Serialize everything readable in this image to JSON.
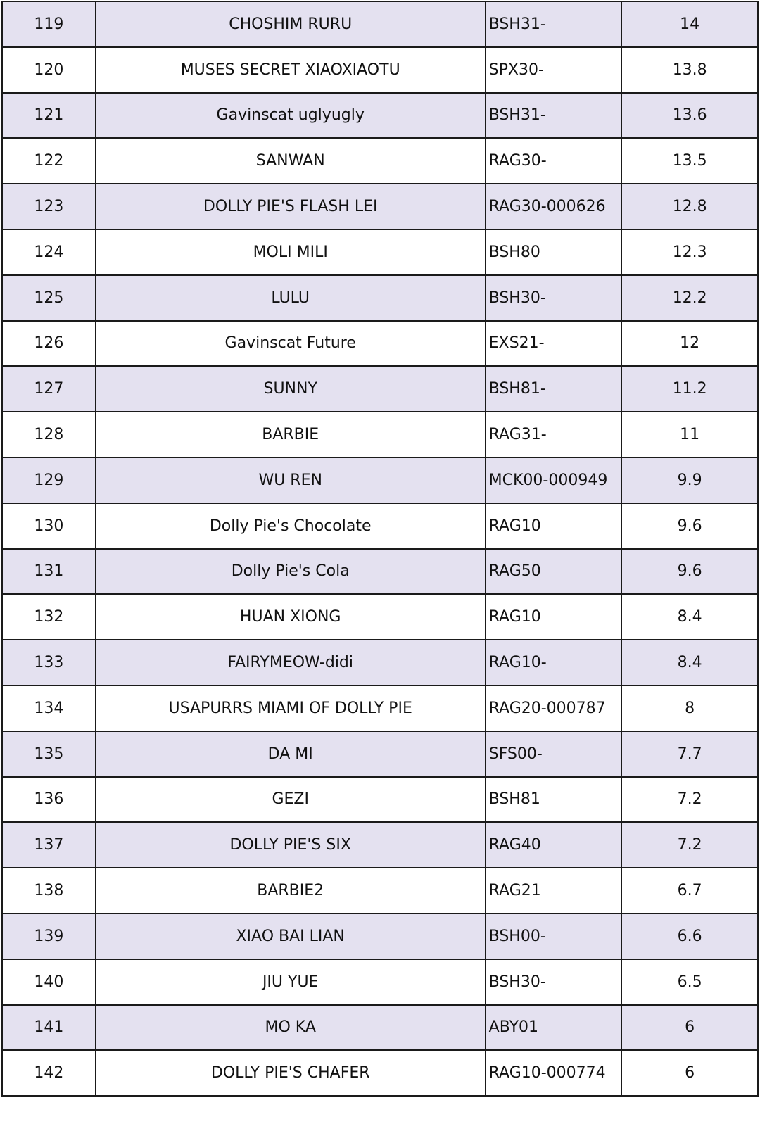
{
  "rows": [
    {
      "rank": "119",
      "name": "CHOSHIM RURU",
      "code": "BSH31-",
      "value": "14"
    },
    {
      "rank": "120",
      "name": "MUSES SECRET XIAOXIAOTU",
      "code": "SPX30-",
      "value": "13.8"
    },
    {
      "rank": "121",
      "name": "Gavinscat uglyugly",
      "code": "BSH31-",
      "value": "13.6"
    },
    {
      "rank": "122",
      "name": "SANWAN",
      "code": "RAG30-",
      "value": "13.5"
    },
    {
      "rank": "123",
      "name": "DOLLY PIE'S FLASH LEI",
      "code": "RAG30-000626",
      "value": "12.8"
    },
    {
      "rank": "124",
      "name": "MOLI MILI",
      "code": "BSH80",
      "value": "12.3"
    },
    {
      "rank": "125",
      "name": "LULU",
      "code": "BSH30-",
      "value": "12.2"
    },
    {
      "rank": "126",
      "name": "Gavinscat Future",
      "code": "EXS21-",
      "value": "12"
    },
    {
      "rank": "127",
      "name": "SUNNY",
      "code": "BSH81-",
      "value": "11.2"
    },
    {
      "rank": "128",
      "name": "BARBIE",
      "code": "RAG31-",
      "value": "11"
    },
    {
      "rank": "129",
      "name": "WU REN",
      "code": "MCK00-000949",
      "value": "9.9"
    },
    {
      "rank": "130",
      "name": "Dolly Pie's Chocolate",
      "code": "RAG10",
      "value": "9.6"
    },
    {
      "rank": "131",
      "name": "Dolly Pie's Cola",
      "code": "RAG50",
      "value": "9.6"
    },
    {
      "rank": "132",
      "name": "HUAN XIONG",
      "code": "RAG10",
      "value": "8.4"
    },
    {
      "rank": "133",
      "name": "FAIRYMEOW-didi",
      "code": "RAG10-",
      "value": "8.4"
    },
    {
      "rank": "134",
      "name": "USAPURRS MIAMI OF DOLLY PIE",
      "code": "RAG20-000787",
      "value": "8"
    },
    {
      "rank": "135",
      "name": "DA MI",
      "code": "SFS00-",
      "value": "7.7"
    },
    {
      "rank": "136",
      "name": "GEZI",
      "code": "BSH81",
      "value": "7.2"
    },
    {
      "rank": "137",
      "name": "DOLLY PIE'S SIX",
      "code": "RAG40",
      "value": "7.2"
    },
    {
      "rank": "138",
      "name": "BARBIE2",
      "code": "RAG21",
      "value": "6.7"
    },
    {
      "rank": "139",
      "name": "XIAO BAI LIAN",
      "code": "BSH00-",
      "value": "6.6"
    },
    {
      "rank": "140",
      "name": "JIU YUE",
      "code": "BSH30-",
      "value": "6.5"
    },
    {
      "rank": "141",
      "name": "MO KA",
      "code": "ABY01",
      "value": "6"
    },
    {
      "rank": "142",
      "name": "DOLLY PIE'S CHAFER",
      "code": "RAG10-000774",
      "value": "6"
    }
  ],
  "colors": {
    "shaded_row": "#e4e1f0",
    "plain_row": "#ffffff",
    "border": "#1a1a1a"
  }
}
